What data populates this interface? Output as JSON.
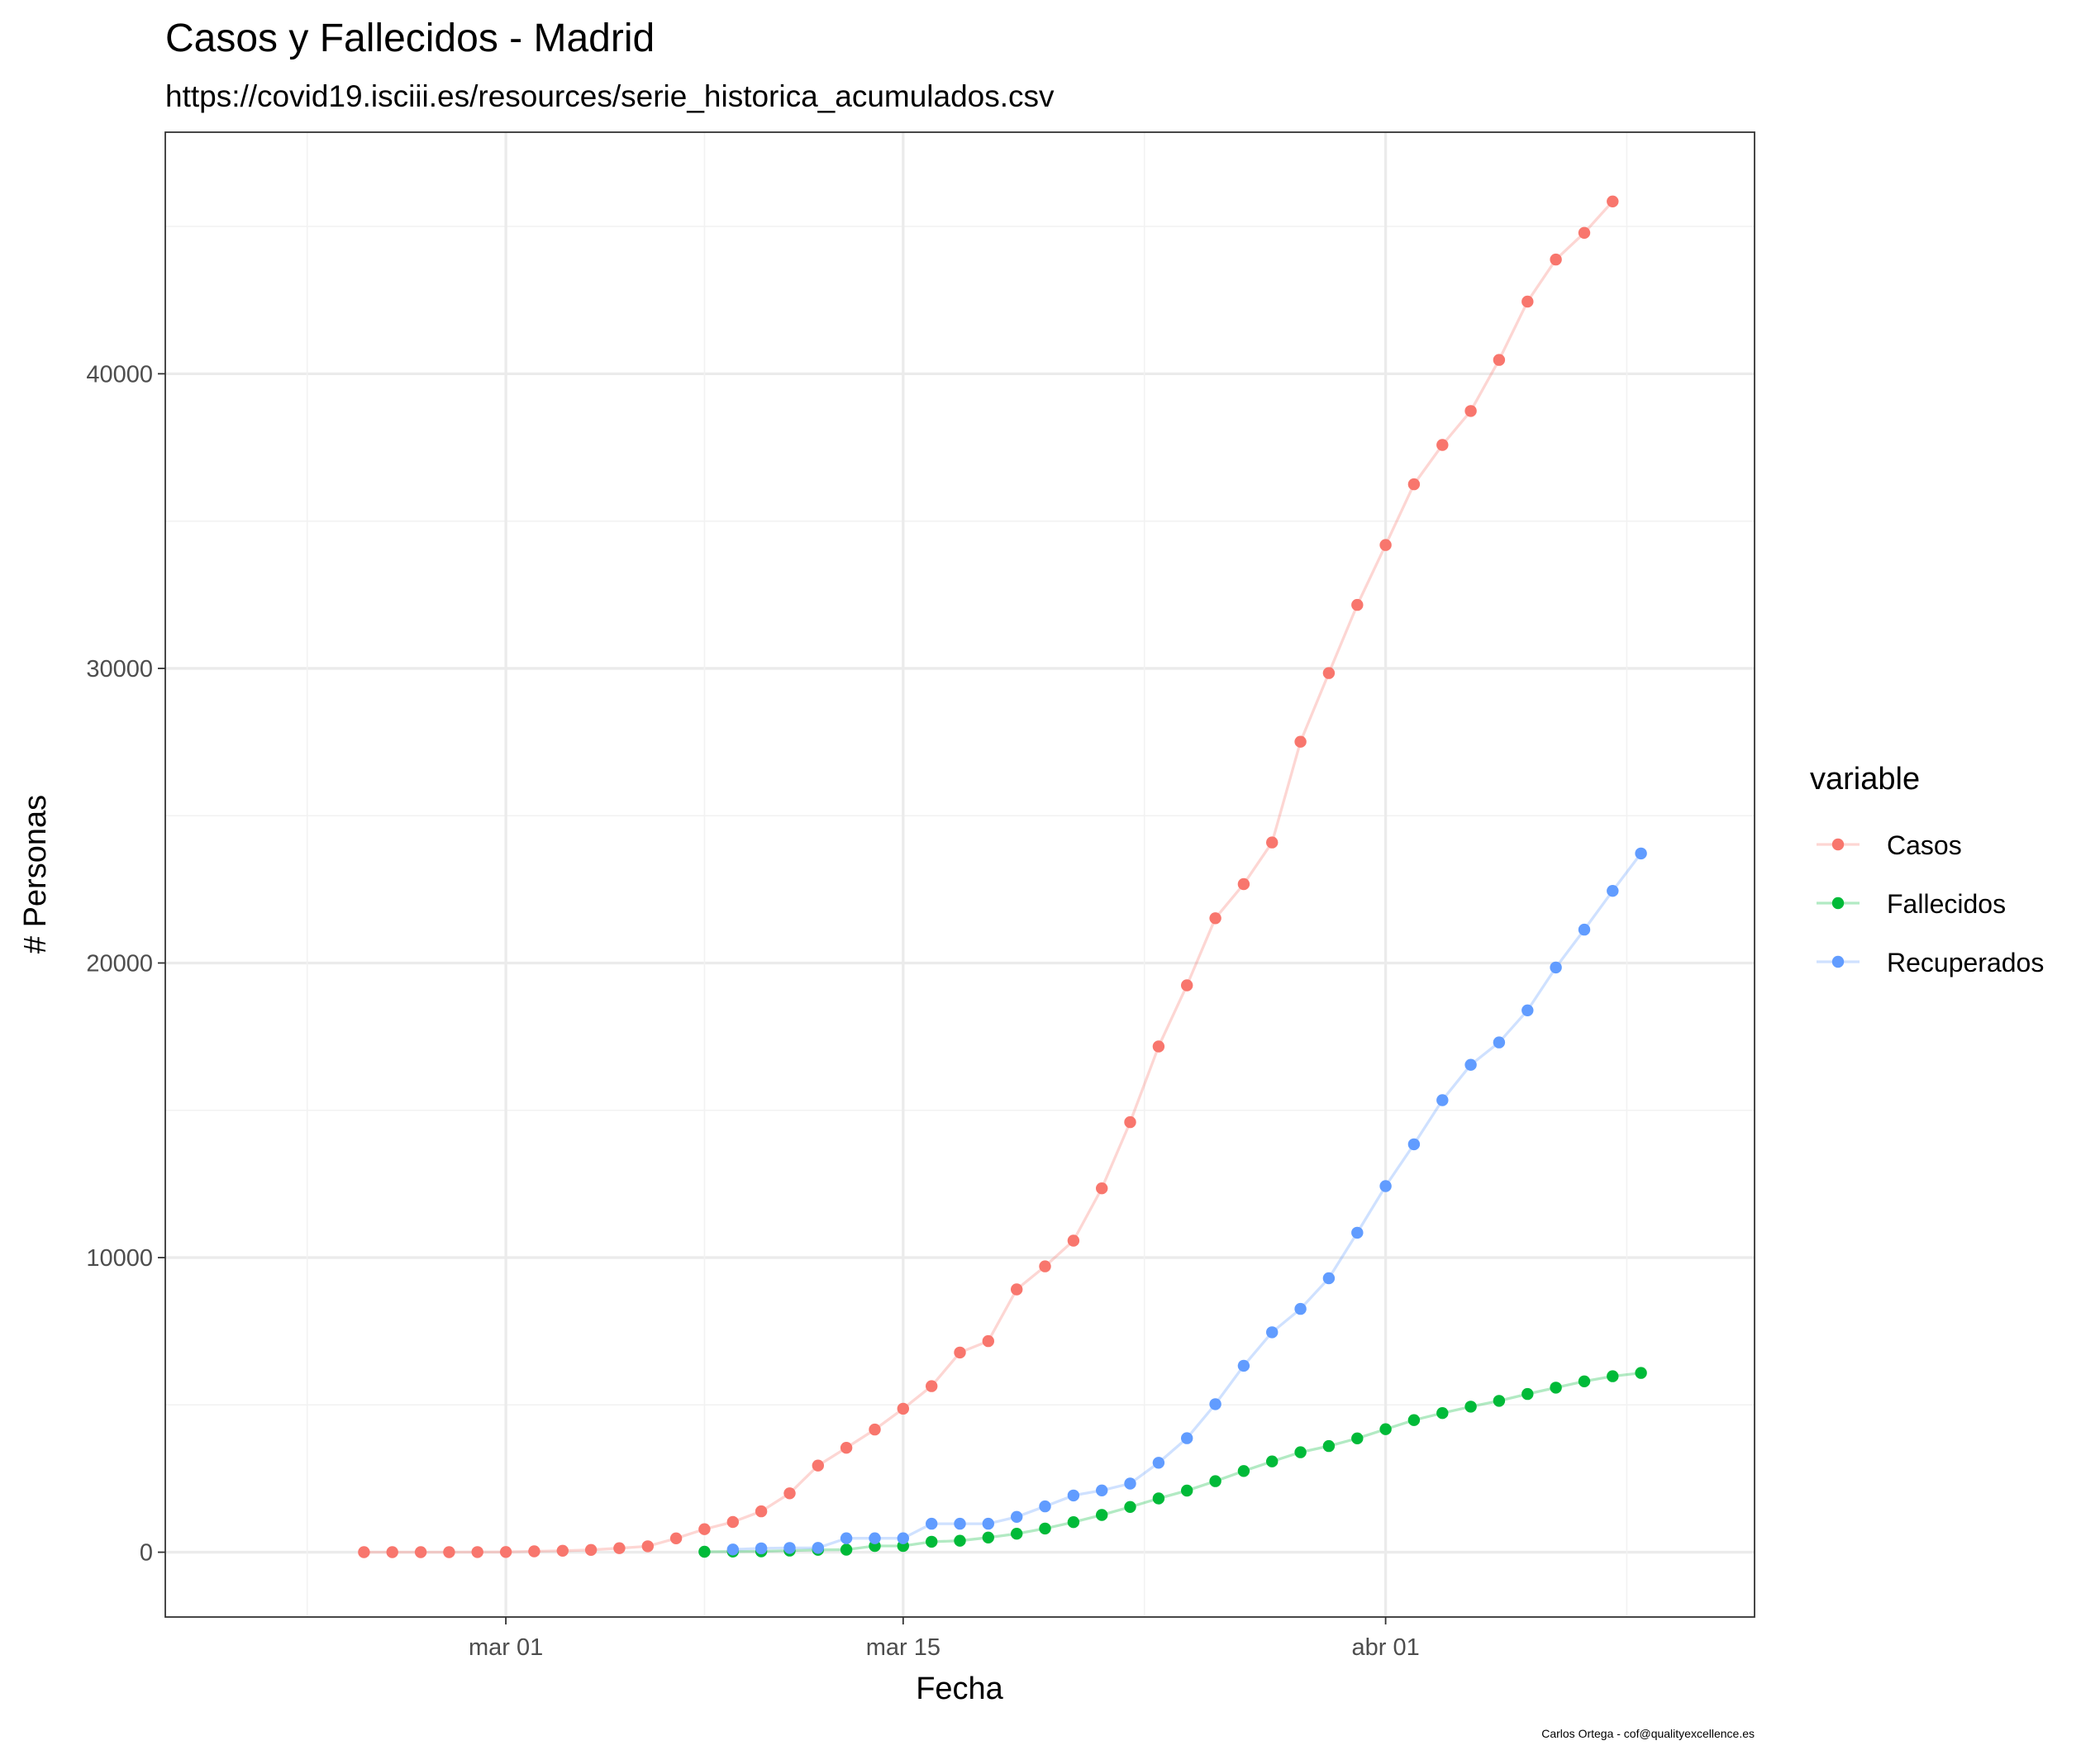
{
  "chart_data": {
    "type": "line",
    "title": "Casos y Fallecidos - Madrid",
    "subtitle": "https://covid19.isciii.es/resources/serie_historica_acumulados.csv",
    "caption": "Carlos Ortega - cof@qualityexcellence.es",
    "xlabel": "Fecha",
    "ylabel": "# Personas",
    "x_ticks": [
      {
        "date": "2020-03-01",
        "label": "mar 01"
      },
      {
        "date": "2020-03-15",
        "label": "mar 15"
      },
      {
        "date": "2020-04-01",
        "label": "abr 01"
      }
    ],
    "y_ticks": [
      0,
      10000,
      20000,
      30000,
      40000
    ],
    "xlim": [
      "2020-02-18",
      "2020-04-14"
    ],
    "ylim": [
      -2200,
      48200
    ],
    "grid": true,
    "legend": {
      "title": "variable",
      "position": "right"
    },
    "series": [
      {
        "name": "Casos",
        "color": "#F8766D",
        "start_date": "2020-02-25",
        "values": [
          1,
          1,
          2,
          3,
          5,
          8,
          29,
          49,
          76,
          137,
          202,
          469,
          782,
          1024,
          1388,
          2000,
          2940,
          3544,
          4165,
          4871,
          5637,
          6777,
          7165,
          8921,
          9702,
          10575,
          12352,
          14597,
          17166,
          19243,
          21520,
          22677,
          24090,
          27509,
          29840,
          32155,
          34188,
          36249,
          37584,
          38736,
          40469,
          42450,
          43877,
          44783,
          45849
        ]
      },
      {
        "name": "Fallecidos",
        "color": "#00BA38",
        "start_date": "2020-03-08",
        "values": [
          16,
          21,
          31,
          56,
          81,
          86,
          213,
          213,
          355,
          390,
          498,
          628,
          804,
          1021,
          1263,
          1535,
          1825,
          2090,
          2412,
          2757,
          3082,
          3392,
          3603,
          3865,
          4175,
          4483,
          4723,
          4941,
          5136,
          5371,
          5586,
          5800,
          5972,
          6084
        ]
      },
      {
        "name": "Recuperados",
        "color": "#619CFF",
        "start_date": "2020-03-09",
        "values": [
          91,
          130,
          145,
          147,
          474,
          474,
          474,
          967,
          967,
          967,
          1199,
          1556,
          1926,
          2098,
          2329,
          3037,
          3870,
          5025,
          6328,
          7465,
          8258,
          9300,
          10844,
          12427,
          13845,
          15344,
          16543,
          17303,
          18392,
          19848,
          21133,
          22448,
          23718
        ]
      }
    ]
  }
}
